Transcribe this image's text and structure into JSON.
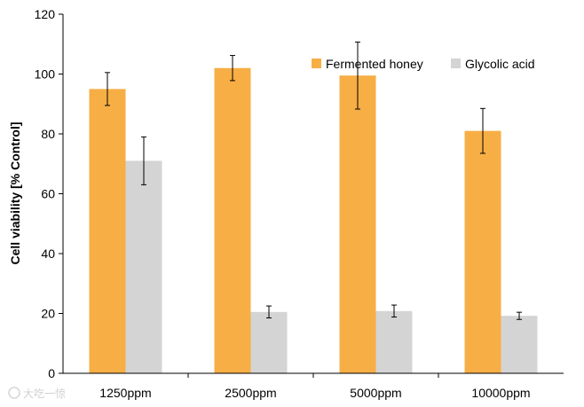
{
  "chart_data": {
    "type": "bar",
    "categories": [
      "1250ppm",
      "2500ppm",
      "5000ppm",
      "10000ppm"
    ],
    "series": [
      {
        "name": "Fermented honey",
        "color": "#F7AE45",
        "values": [
          95,
          102,
          99.5,
          81
        ],
        "errors": [
          5.5,
          4.2,
          11.2,
          7.5
        ]
      },
      {
        "name": "Glycolic acid",
        "color": "#D4D4D4",
        "values": [
          71,
          20.5,
          20.8,
          19.2
        ],
        "errors": [
          8,
          2,
          2,
          1.2
        ]
      }
    ],
    "title": "",
    "xlabel": "",
    "ylabel": "Cell viability [% Control]",
    "ylim": [
      0,
      120
    ],
    "yticks": [
      0,
      20,
      40,
      60,
      80,
      100,
      120
    ],
    "legend_position": "top-right",
    "grid": false
  },
  "watermark": {
    "text": "大吃一惊",
    "icon": "watermark-logo-icon"
  }
}
